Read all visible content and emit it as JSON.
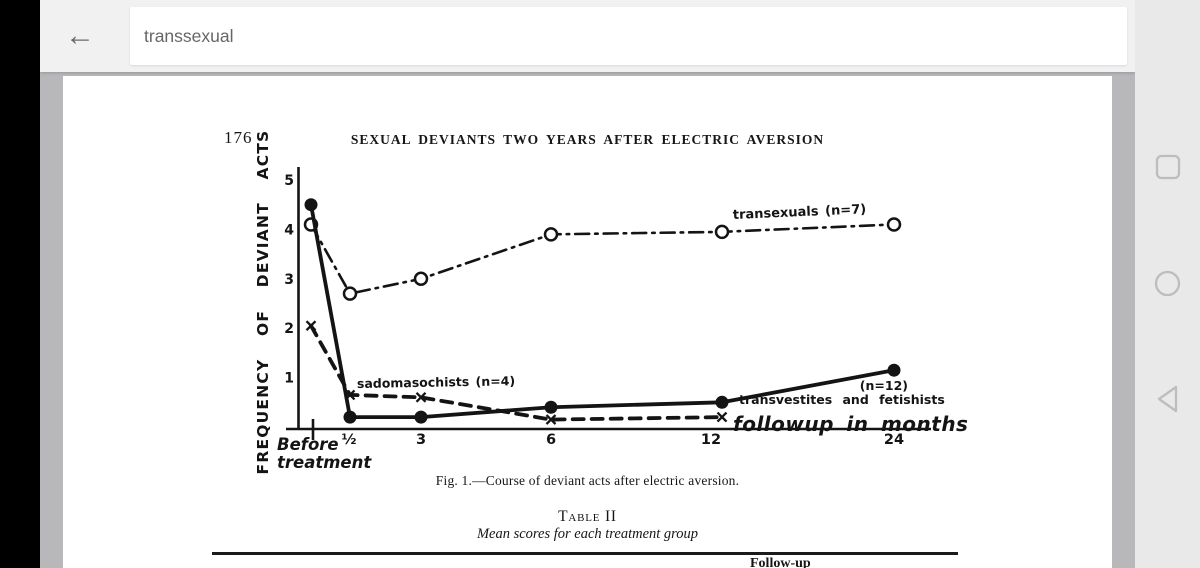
{
  "browser": {
    "search_query": "transsexual",
    "back_icon": "arrow-left"
  },
  "android_nav": {
    "buttons": [
      "recents",
      "home",
      "back"
    ]
  },
  "paper": {
    "page_number": "176",
    "running_title": "SEXUAL DEVIANTS TWO YEARS AFTER ELECTRIC AVERSION",
    "figure_caption": "Fig. 1.—Course of deviant acts after electric aversion.",
    "table_title": "Table II",
    "table_subtitle": "Mean scores for each treatment group",
    "table_partial_header": "Follow-up"
  },
  "chart_data": {
    "type": "line",
    "figure_label": "Fig. 1",
    "title": "Course of deviant acts after electric aversion",
    "ylabel": "FREQUENCY OF DEVIANT ACTS",
    "ylim": [
      0,
      5
    ],
    "y_ticks": [
      1,
      2,
      3,
      4,
      5
    ],
    "categories": [
      "Before treatment",
      "½",
      "3",
      "6",
      "12",
      "24"
    ],
    "x_tick_labels": [
      "½",
      "3",
      "6",
      "12",
      "24"
    ],
    "x_first_label_lines": [
      "Before",
      "treatment"
    ],
    "x_axis_annotation": "followup in months",
    "grid": false,
    "legend": "inline-labels",
    "series": [
      {
        "name": "transexuals (n=7)",
        "line": "dashdot",
        "marker": "open-circle",
        "values": [
          4.1,
          2.7,
          3.0,
          3.9,
          3.95,
          4.1
        ]
      },
      {
        "name": "sadomasochists (n=4)",
        "line": "dashed",
        "marker": "x",
        "values": [
          2.05,
          0.65,
          0.6,
          0.15,
          0.2,
          null
        ]
      },
      {
        "name": "transvestites and fetishists (n=12)",
        "line": "solid",
        "marker": "filled-circle",
        "values": [
          4.5,
          0.2,
          0.2,
          0.4,
          0.5,
          1.15
        ]
      }
    ],
    "series_labels": [
      {
        "text": "transexuals (n=7)"
      },
      {
        "text": "sadomasochists (n=4)"
      },
      {
        "text": "(n=12)"
      },
      {
        "text": "transvestites and fetishists"
      }
    ]
  }
}
